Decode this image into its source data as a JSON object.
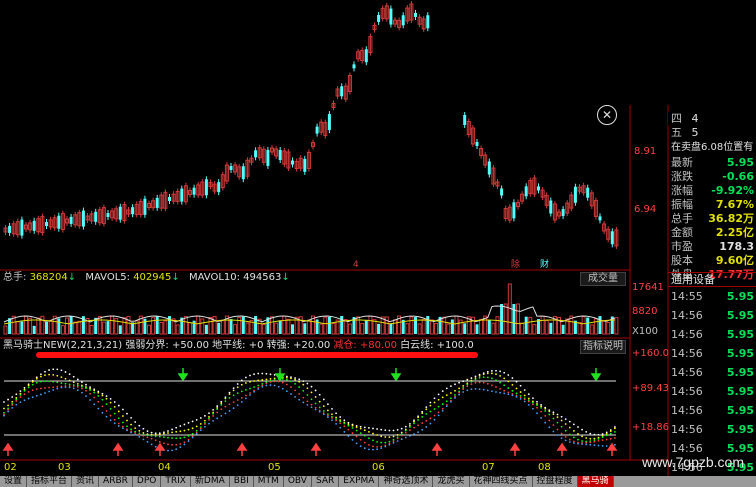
{
  "colors": {
    "up": "#d23a3a",
    "down": "#54ffff",
    "bg": "#000000",
    "axis": "#a00000",
    "ma_white": "#e0e0e0",
    "ma_yellow": "#e0e000",
    "green": "#00e05a",
    "signal_up": "#ff4040",
    "signal_down": "#20e020"
  },
  "price_axis": {
    "label_891": "8.91",
    "label_694": "6.94"
  },
  "price_markers": [
    "4",
    "除",
    "财"
  ],
  "volume_header": {
    "total_label": "总手: ",
    "total_value": "368204",
    "mavol5_label": "MAVOL5: ",
    "mavol5_value": "402945",
    "mavol10_label": "MAVOL10: ",
    "mavol10_value": "494563",
    "panel_name": "成交量"
  },
  "volume_axis": {
    "top": "17641",
    "mid": "8820",
    "unit": "X100"
  },
  "indicator_header": {
    "name": "黑马骑士NEW(2,21,3,21)",
    "strong_weak": "强弱分界: +50.00",
    "ground": "地平线: +0",
    "turn_strong": "转强: +20.00",
    "reduce": "减仓: +80.00",
    "white_cloud": "白云线: +100.0",
    "explain_button": "指标说明"
  },
  "indicator_axis": {
    "a": "+160.0",
    "b": "+89.43",
    "c": "+18.86"
  },
  "months": [
    "02",
    "03",
    "04",
    "05",
    "06",
    "07",
    "08"
  ],
  "tabs": [
    "设置",
    "指标平台",
    "资讯",
    "ARBR",
    "DPO",
    "TRIX",
    "新DMA",
    "BBI",
    "MTM",
    "OBV",
    "SAR",
    "EXPMA",
    "神奇选顶术",
    "龙虎买",
    "花神四线买点",
    "控盘程度",
    "黑马骑"
  ],
  "active_tab": "黑马骑",
  "order_book": {
    "row1_label": "四",
    "row1_value": "4",
    "row2_label": "五",
    "row2_value": "5",
    "note": "在卖盘6.08位置有"
  },
  "quote": [
    {
      "k": "最新",
      "v": "5.95",
      "c": "#00e05a"
    },
    {
      "k": "涨跌",
      "v": "-0.66",
      "c": "#00e05a"
    },
    {
      "k": "涨幅",
      "v": "-9.92%",
      "c": "#00e05a"
    },
    {
      "k": "振幅",
      "v": "7.67%",
      "c": "#e0e000"
    },
    {
      "k": "总手",
      "v": "36.82万",
      "c": "#e0e000"
    },
    {
      "k": "金额",
      "v": "2.25亿",
      "c": "#e0e000"
    },
    {
      "k": "市盈",
      "v": "178.3",
      "c": "#e0e0e0"
    },
    {
      "k": "股本",
      "v": "9.60亿",
      "c": "#e0e000"
    },
    {
      "k": "外盘",
      "v": "17.77万",
      "c": "#ff3030"
    }
  ],
  "trades_header": "通用设备",
  "trades": [
    {
      "t": "14:55",
      "p": "5.95"
    },
    {
      "t": "14:56",
      "p": "5.95"
    },
    {
      "t": "14:56",
      "p": "5.95"
    },
    {
      "t": "14:56",
      "p": "5.95"
    },
    {
      "t": "14:56",
      "p": "5.95"
    },
    {
      "t": "14:56",
      "p": "5.95"
    },
    {
      "t": "14:56",
      "p": "5.95"
    },
    {
      "t": "14:56",
      "p": "5.95"
    },
    {
      "t": "14:56",
      "p": "5.95"
    },
    {
      "t": "14:56",
      "p": "5.95"
    }
  ],
  "close_glyph": "✕",
  "watermark": "www.7gpzb.com"
}
